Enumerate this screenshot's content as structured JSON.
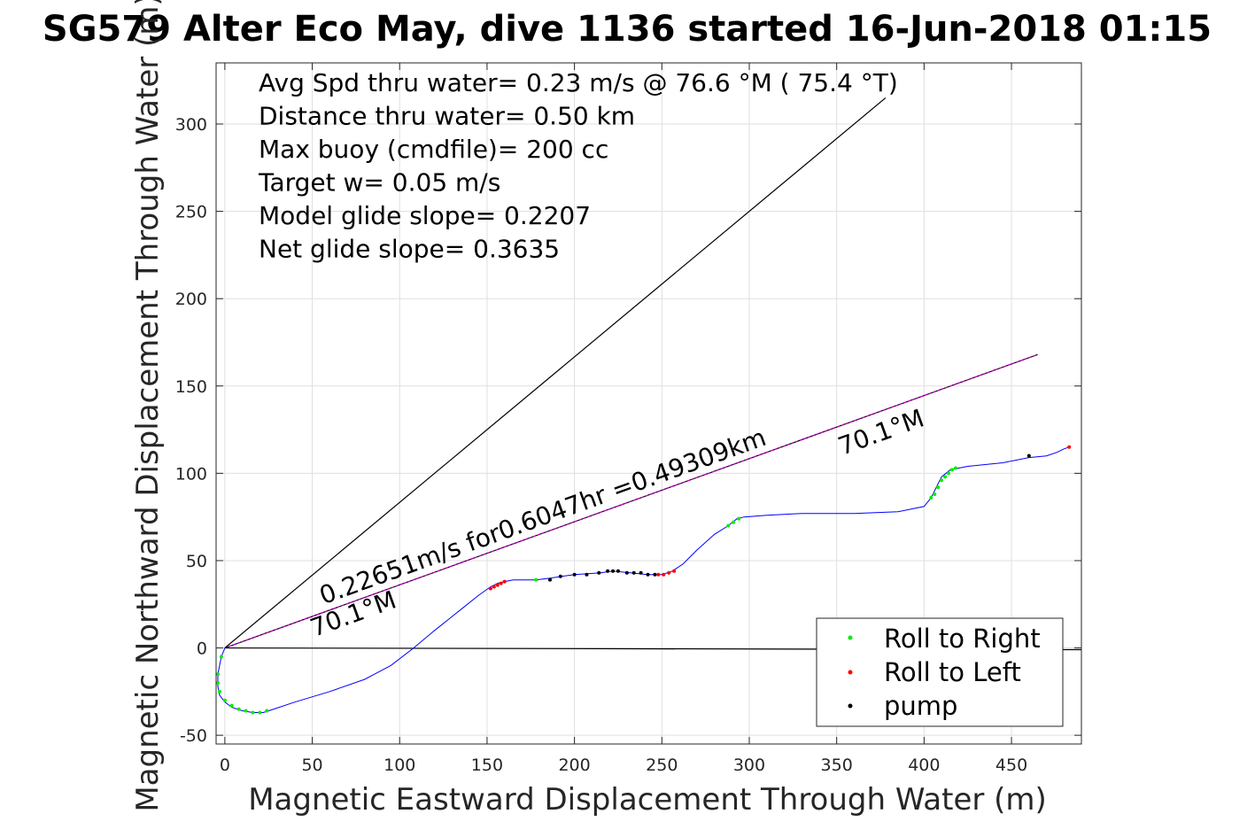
{
  "chart_data": {
    "type": "line",
    "title": "SG579 Alter Eco May, dive 1136 started 16-Jun-2018 01:15",
    "xlabel": "Magnetic Eastward Displacement Through Water (m)",
    "ylabel": "Magnetic Northward Displacement Through Water (m)",
    "xlim": [
      -5,
      490
    ],
    "ylim": [
      -55,
      335
    ],
    "xticks": [
      0,
      50,
      100,
      150,
      200,
      250,
      300,
      350,
      400,
      450
    ],
    "yticks": [
      -50,
      0,
      50,
      100,
      150,
      200,
      250,
      300
    ],
    "grid": true,
    "legend_position": "bottom-right",
    "info_lines": [
      "Avg Spd thru water=  0.23 m/s @  76.6 °M ( 75.4 °T)",
      "Distance thru water=  0.50 km",
      "Max buoy (cmdfile)= 200 cc",
      "Target w= 0.05 m/s",
      "Model glide slope= 0.2207",
      "Net glide slope= 0.3635"
    ],
    "annotations": {
      "speed_label": "0.22651m/s for0.6047hr =0.49309km",
      "heading_label_near": "70.1°M",
      "heading_label_far": "70.1°M"
    },
    "reference_lines": [
      {
        "name": "heading-70-1",
        "color": "#000000",
        "x": [
          0,
          465
        ],
        "y": [
          0,
          168
        ]
      },
      {
        "name": "heading-70-1-magenta",
        "color": "#cc00cc",
        "x": [
          0,
          465
        ],
        "y": [
          0,
          168
        ]
      },
      {
        "name": "heading-48",
        "color": "#000000",
        "x": [
          0,
          378
        ],
        "y": [
          0,
          315
        ]
      },
      {
        "name": "east-axis",
        "color": "#000000",
        "x": [
          0,
          490
        ],
        "y": [
          0,
          -1
        ]
      }
    ],
    "track": {
      "color": "#0000ff",
      "x": [
        0,
        -2,
        -4,
        -4,
        -3,
        0,
        4,
        10,
        16,
        22,
        28,
        40,
        60,
        80,
        95,
        108,
        120,
        135,
        145,
        152,
        156,
        160,
        165,
        178,
        186,
        200,
        215,
        222,
        232,
        242,
        250,
        256,
        262,
        270,
        280,
        288,
        293,
        297,
        310,
        330,
        360,
        385,
        400,
        404,
        407,
        410,
        415,
        425,
        445,
        460,
        470,
        476,
        480,
        483
      ],
      "y": [
        0,
        -5,
        -15,
        -22,
        -27,
        -31,
        -34,
        -36,
        -37,
        -37,
        -35,
        -31,
        -25,
        -18,
        -10,
        0,
        10,
        22,
        30,
        35,
        37,
        38,
        39,
        39,
        40,
        42,
        43,
        44,
        43,
        42,
        42,
        44,
        48,
        56,
        65,
        70,
        74,
        75,
        76,
        77,
        77,
        78,
        81,
        86,
        92,
        98,
        102,
        104,
        106,
        109,
        110,
        112,
        114,
        115
      ]
    },
    "series": [
      {
        "name": "Roll to Right",
        "color": "#00ee00",
        "marker": "dot",
        "x": [
          -2,
          -4,
          -4,
          -3,
          0,
          4,
          8,
          12,
          16,
          20,
          24,
          178,
          186,
          288,
          291,
          294,
          404,
          406,
          408,
          410,
          412,
          414,
          416,
          418
        ],
        "y": [
          -5,
          -15,
          -20,
          -25,
          -30,
          -33,
          -35,
          -36,
          -37,
          -37,
          -36,
          39,
          39,
          70,
          72,
          74,
          86,
          88,
          92,
          96,
          98,
          100,
          102,
          103
        ]
      },
      {
        "name": "Roll to Left",
        "color": "#ff0000",
        "marker": "dot",
        "x": [
          152,
          154,
          156,
          158,
          160,
          248,
          251,
          254,
          257,
          483
        ],
        "y": [
          34,
          35,
          36,
          37,
          38,
          42,
          42,
          43,
          44,
          115
        ]
      },
      {
        "name": "pump",
        "color": "#000000",
        "marker": "dot",
        "x": [
          186,
          192,
          200,
          207,
          214,
          219,
          222,
          225,
          230,
          234,
          238,
          242,
          246,
          460
        ],
        "y": [
          39,
          41,
          42,
          42,
          43,
          44,
          44,
          44,
          43,
          43,
          43,
          42,
          42,
          110
        ]
      }
    ]
  }
}
